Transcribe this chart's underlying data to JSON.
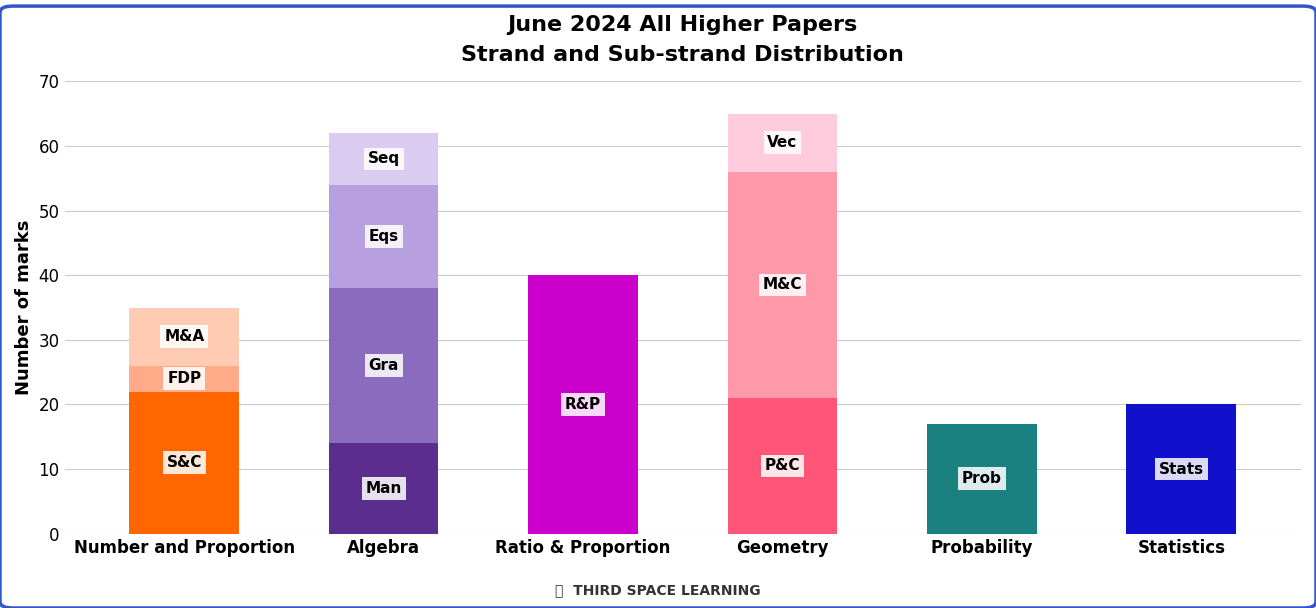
{
  "title_line1": "June 2024 All Higher Papers",
  "title_line2": "Strand and Sub-strand Distribution",
  "ylabel": "Number of marks",
  "categories": [
    "Number and Proportion",
    "Algebra",
    "Ratio & Proportion",
    "Geometry",
    "Probability",
    "Statistics"
  ],
  "stacks": [
    {
      "label": "Number and Proportion",
      "segments": [
        {
          "name": "S&C",
          "value": 22,
          "color": "#FF6600"
        },
        {
          "name": "FDP",
          "value": 4,
          "color": "#FFAA88"
        },
        {
          "name": "M&A",
          "value": 9,
          "color": "#FFCCB3"
        }
      ]
    },
    {
      "label": "Algebra",
      "segments": [
        {
          "name": "Man",
          "value": 14,
          "color": "#5B2D8E"
        },
        {
          "name": "Gra",
          "value": 24,
          "color": "#8A6BBE"
        },
        {
          "name": "Eqs",
          "value": 16,
          "color": "#B8A0E0"
        },
        {
          "name": "Seq",
          "value": 8,
          "color": "#D9CCF0"
        }
      ]
    },
    {
      "label": "Ratio & Proportion",
      "segments": [
        {
          "name": "R&P",
          "value": 40,
          "color": "#CC00CC"
        }
      ]
    },
    {
      "label": "Geometry",
      "segments": [
        {
          "name": "P&C",
          "value": 21,
          "color": "#FF5577"
        },
        {
          "name": "M&C",
          "value": 35,
          "color": "#FF99AA"
        },
        {
          "name": "Vec",
          "value": 9,
          "color": "#FFCCDD"
        }
      ]
    },
    {
      "label": "Probability",
      "segments": [
        {
          "name": "Prob",
          "value": 17,
          "color": "#1A8080"
        }
      ]
    },
    {
      "label": "Statistics",
      "segments": [
        {
          "name": "Stats",
          "value": 20,
          "color": "#1111CC"
        }
      ]
    }
  ],
  "ylim": [
    0,
    70
  ],
  "yticks": [
    0,
    10,
    20,
    30,
    40,
    50,
    60,
    70
  ],
  "background_color": "#FFFFFF",
  "border_color": "#3355CC",
  "grid_color": "#CCCCCC",
  "label_box_color": "#FFFFFF",
  "label_text_color": "#000000",
  "label_fontsize": 11,
  "title_fontsize": 16,
  "axis_label_fontsize": 13,
  "tick_fontsize": 12,
  "bar_width": 0.55,
  "tsl_text": "THIRD SPACE LEARNING"
}
